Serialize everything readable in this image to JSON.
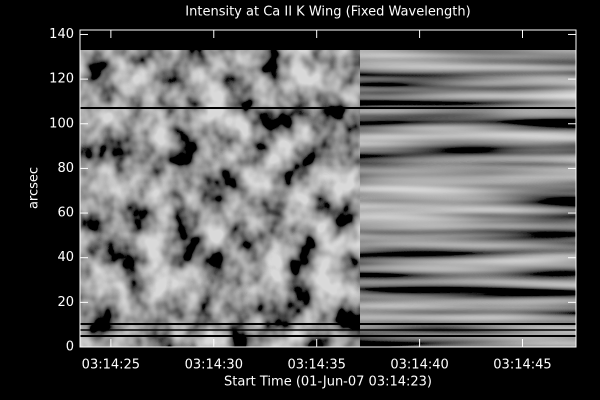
{
  "chart_data": {
    "type": "image",
    "title": "Intensity at Ca II K Wing (Fixed Wavelength)",
    "x_label": "Start Time (01-Jun-07 03:14:23)",
    "y_label": "arcsec",
    "xlim": [
      0.5,
      24.6
    ],
    "xticks": [
      {
        "value": 2,
        "label": "03:14:25"
      },
      {
        "value": 7,
        "label": "03:14:30"
      },
      {
        "value": 12,
        "label": "03:14:35"
      },
      {
        "value": 17,
        "label": "03:14:40"
      },
      {
        "value": 22,
        "label": "03:14:45"
      }
    ],
    "ylim": [
      0,
      142
    ],
    "yticks": [
      0,
      20,
      40,
      60,
      80,
      100,
      120,
      140
    ]
  }
}
